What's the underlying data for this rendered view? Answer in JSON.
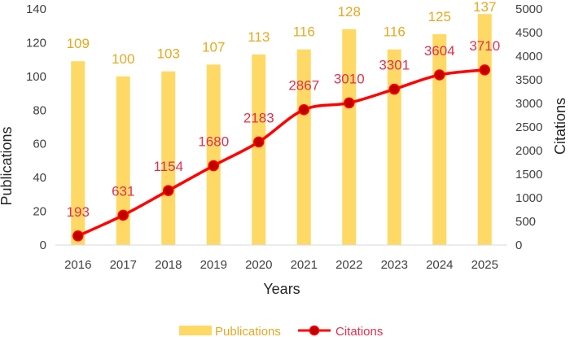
{
  "chart_data": {
    "type": "bar+line",
    "categories": [
      "2016",
      "2017",
      "2018",
      "2019",
      "2020",
      "2021",
      "2022",
      "2023",
      "2024",
      "2025"
    ],
    "series": [
      {
        "name": "Publications",
        "type": "bar",
        "axis": "left",
        "values": [
          109,
          100,
          103,
          107,
          113,
          116,
          128,
          116,
          125,
          137
        ]
      },
      {
        "name": "Citations",
        "type": "line",
        "axis": "right",
        "values": [
          193,
          631,
          1154,
          1680,
          2183,
          2867,
          3010,
          3301,
          3604,
          3710
        ]
      }
    ],
    "xlabel": "Years",
    "ylabel_left": "Publications",
    "ylabel_right": "Citations",
    "ylim_left": [
      0,
      140
    ],
    "ylim_right": [
      0,
      5000
    ],
    "yticks_left": [
      0,
      20,
      40,
      60,
      80,
      100,
      120,
      140
    ],
    "yticks_right": [
      0,
      500,
      1000,
      1500,
      2000,
      2500,
      3000,
      3500,
      4000,
      4500,
      5000
    ],
    "grid": false,
    "legend": "bottom",
    "colors": {
      "bar": "#FFD966",
      "bar_label": "#E8A820",
      "line": "#FF0000",
      "marker": "#C00000",
      "line_label": "#E0304F"
    }
  }
}
